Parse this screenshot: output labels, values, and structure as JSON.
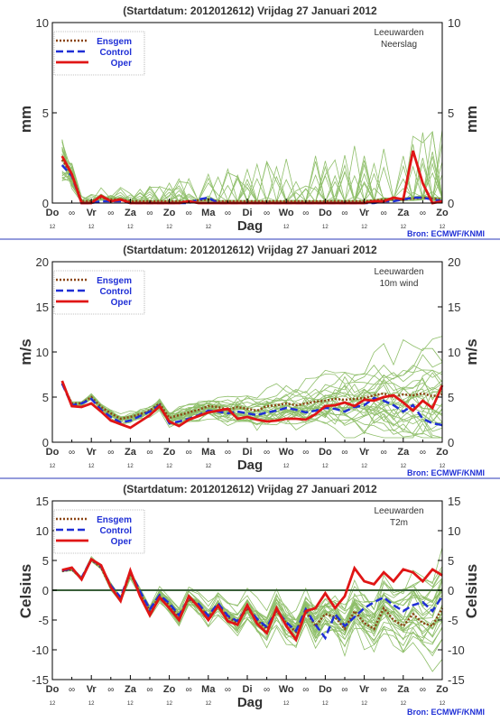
{
  "colors": {
    "background": "#ffffff",
    "axis": "#000000",
    "ensemble_member": "#8fbf6a",
    "ensgem": "#8b4513",
    "control": "#1f2fd6",
    "oper": "#e01515",
    "zero_line": "#3a5f3a",
    "divider": "#2a3ab8",
    "title": "#333333",
    "source": "#1f2fd6"
  },
  "shared": {
    "title": "(Startdatum: 2012012612)   Vrijdag   27 Januari   2012",
    "days": [
      "Do",
      "Vr",
      "Za",
      "Zo",
      "Ma",
      "Di",
      "Wo",
      "Do",
      "Vr",
      "Za",
      "Zo"
    ],
    "noon_mark": "∞",
    "hour_label": "12",
    "xlabel": "Dag",
    "source": "Bron: ECMWF/KNMI",
    "legend": [
      "Ensgem",
      "Control",
      "Oper"
    ]
  },
  "chart_data": [
    {
      "type": "line",
      "location": "Leeuwarden",
      "variable": "Neerslag",
      "ylabel": "mm",
      "ylim": [
        0,
        10
      ],
      "yticks": [
        0,
        5,
        10
      ],
      "xlim": [
        0,
        10
      ],
      "grid": false,
      "legend_position": "top-left",
      "x": [
        0.25,
        0.5,
        0.75,
        1,
        1.25,
        1.5,
        1.75,
        2,
        2.25,
        2.5,
        2.75,
        3,
        3.25,
        3.5,
        3.75,
        4,
        4.25,
        4.5,
        4.75,
        5,
        5.25,
        5.5,
        5.75,
        6,
        6.25,
        6.5,
        6.75,
        7,
        7.25,
        7.5,
        7.75,
        8,
        8.25,
        8.5,
        8.75,
        9,
        9.25,
        9.5,
        9.75,
        10
      ],
      "series": [
        {
          "name": "Ensgem",
          "values": [
            2.4,
            1.6,
            0.1,
            0.1,
            0.3,
            0.2,
            0.2,
            0.1,
            0.1,
            0.1,
            0.1,
            0.1,
            0.1,
            0.1,
            0.15,
            0.2,
            0.1,
            0.1,
            0.1,
            0.1,
            0.1,
            0.1,
            0.1,
            0.1,
            0.1,
            0.1,
            0.1,
            0.1,
            0.1,
            0.1,
            0.1,
            0.1,
            0.15,
            0.2,
            0.2,
            0.2,
            0.25,
            0.3,
            0.25,
            0.2
          ]
        },
        {
          "name": "Control",
          "values": [
            2.1,
            1.5,
            0.0,
            0.0,
            0.1,
            0.1,
            0.1,
            0.0,
            0.0,
            0.0,
            0.0,
            0.0,
            0.0,
            0.0,
            0.2,
            0.3,
            0.0,
            0.0,
            0.0,
            0.0,
            0.0,
            0.0,
            0.0,
            0.0,
            0.0,
            0.0,
            0.0,
            0.0,
            0.0,
            0.0,
            0.0,
            0.0,
            0.0,
            0.1,
            0.1,
            0.2,
            0.3,
            0.3,
            0.2,
            0.1
          ]
        },
        {
          "name": "Oper",
          "values": [
            2.6,
            1.6,
            0.0,
            0.0,
            0.4,
            0.1,
            0.2,
            0.0,
            0.0,
            0.0,
            0.0,
            0.0,
            0.0,
            0.1,
            0.0,
            0.0,
            0.0,
            0.0,
            0.0,
            0.0,
            0.0,
            0.0,
            0.0,
            0.0,
            0.0,
            0.0,
            0.0,
            0.0,
            0.0,
            0.0,
            0.0,
            0.0,
            0.1,
            0.1,
            0.3,
            0.2,
            2.9,
            1.1,
            0.0,
            0.1
          ]
        }
      ]
    },
    {
      "type": "line",
      "location": "Leeuwarden",
      "variable": "10m wind",
      "ylabel": "m/s",
      "ylim": [
        0,
        20
      ],
      "yticks": [
        0,
        5,
        10,
        15,
        20
      ],
      "xlim": [
        0,
        10
      ],
      "grid": false,
      "legend_position": "top-left",
      "x": [
        0.25,
        0.5,
        0.75,
        1,
        1.25,
        1.5,
        1.75,
        2,
        2.25,
        2.5,
        2.75,
        3,
        3.25,
        3.5,
        3.75,
        4,
        4.25,
        4.5,
        4.75,
        5,
        5.25,
        5.5,
        5.75,
        6,
        6.25,
        6.5,
        6.75,
        7,
        7.25,
        7.5,
        7.75,
        8,
        8.25,
        8.5,
        8.75,
        9,
        9.25,
        9.5,
        9.75,
        10
      ],
      "series": [
        {
          "name": "Ensgem",
          "values": [
            6.5,
            4.3,
            4.3,
            5.0,
            3.9,
            3.2,
            2.6,
            2.8,
            3.1,
            3.5,
            4.3,
            2.7,
            3.0,
            3.3,
            3.6,
            4.0,
            3.9,
            3.6,
            3.9,
            3.7,
            3.5,
            4.0,
            4.1,
            4.3,
            4.1,
            4.3,
            4.5,
            4.6,
            4.8,
            4.7,
            4.8,
            4.9,
            5.2,
            5.4,
            5.0,
            5.3,
            5.2,
            5.4,
            5.1,
            5.3
          ]
        },
        {
          "name": "Control",
          "values": [
            6.5,
            4.1,
            4.3,
            4.8,
            3.6,
            2.8,
            2.2,
            2.4,
            2.9,
            3.4,
            4.1,
            2.1,
            2.3,
            2.6,
            3.0,
            3.5,
            3.4,
            3.2,
            3.4,
            3.2,
            3.0,
            3.3,
            3.5,
            3.8,
            3.6,
            3.3,
            3.5,
            3.8,
            3.7,
            3.4,
            3.9,
            4.1,
            4.9,
            4.6,
            4.1,
            3.4,
            4.1,
            2.6,
            2.1,
            1.9
          ]
        },
        {
          "name": "Oper",
          "values": [
            6.8,
            4.0,
            3.9,
            4.3,
            3.4,
            2.4,
            2.0,
            1.6,
            2.3,
            3.0,
            4.0,
            2.3,
            1.8,
            2.5,
            2.9,
            3.3,
            3.5,
            3.7,
            2.6,
            2.8,
            2.5,
            2.3,
            2.4,
            2.6,
            2.6,
            2.5,
            3.1,
            4.0,
            4.1,
            4.4,
            4.0,
            4.7,
            4.6,
            5.0,
            5.2,
            4.4,
            3.5,
            4.6,
            3.8,
            6.3
          ]
        }
      ]
    },
    {
      "type": "line",
      "location": "Leeuwarden",
      "variable": "T2m",
      "ylabel": "Celsius",
      "ylim": [
        -15,
        15
      ],
      "yticks": [
        -15,
        -10,
        -5,
        0,
        5,
        10,
        15
      ],
      "xlim": [
        0,
        10
      ],
      "grid": false,
      "legend_position": "top-left",
      "x": [
        0.25,
        0.5,
        0.75,
        1,
        1.25,
        1.5,
        1.75,
        2,
        2.25,
        2.5,
        2.75,
        3,
        3.25,
        3.5,
        3.75,
        4,
        4.25,
        4.5,
        4.75,
        5,
        5.25,
        5.5,
        5.75,
        6,
        6.25,
        6.5,
        6.75,
        7,
        7.25,
        7.5,
        7.75,
        8,
        8.25,
        8.5,
        8.75,
        9,
        9.25,
        9.5,
        9.75,
        10
      ],
      "series": [
        {
          "name": "Ensgem",
          "values": [
            3.2,
            3.5,
            2.0,
            5.1,
            3.8,
            0.5,
            -1.5,
            2.8,
            -0.5,
            -3.5,
            -1.0,
            -2.5,
            -4.5,
            -1.5,
            -2.5,
            -4.5,
            -2.5,
            -4.5,
            -5.5,
            -3.0,
            -5.0,
            -6.5,
            -3.5,
            -5.5,
            -7.0,
            -3.5,
            -6.0,
            -4.0,
            -4.5,
            -6.5,
            -3.5,
            -5.5,
            -6.5,
            -3.0,
            -5.0,
            -6.0,
            -4.0,
            -5.5,
            -6.0,
            -3.0
          ]
        },
        {
          "name": "Control",
          "values": [
            3.3,
            3.6,
            2.1,
            5.2,
            4.0,
            0.8,
            -1.2,
            3.1,
            -0.2,
            -3.2,
            -0.8,
            -2.2,
            -4.2,
            -1.3,
            -2.3,
            -4.3,
            -2.2,
            -4.3,
            -5.2,
            -2.8,
            -4.8,
            -6.2,
            -3.3,
            -5.4,
            -6.8,
            -3.2,
            -5.8,
            -8.0,
            -4.0,
            -6.0,
            -4.5,
            -3.0,
            -2.0,
            -1.2,
            -2.5,
            -3.5,
            -2.5,
            -2.0,
            -3.5,
            -1.0
          ]
        },
        {
          "name": "Oper",
          "values": [
            3.4,
            3.8,
            1.8,
            5.2,
            4.2,
            0.5,
            -1.8,
            3.3,
            -1.0,
            -4.2,
            -1.2,
            -3.0,
            -5.0,
            -1.0,
            -2.8,
            -5.0,
            -2.6,
            -5.2,
            -5.8,
            -2.5,
            -5.6,
            -7.2,
            -3.0,
            -6.0,
            -8.3,
            -3.5,
            -3.0,
            -0.5,
            -3.0,
            -1.0,
            3.7,
            1.5,
            1.0,
            3.0,
            1.5,
            3.5,
            3.0,
            1.5,
            3.5,
            2.5
          ]
        }
      ]
    }
  ]
}
